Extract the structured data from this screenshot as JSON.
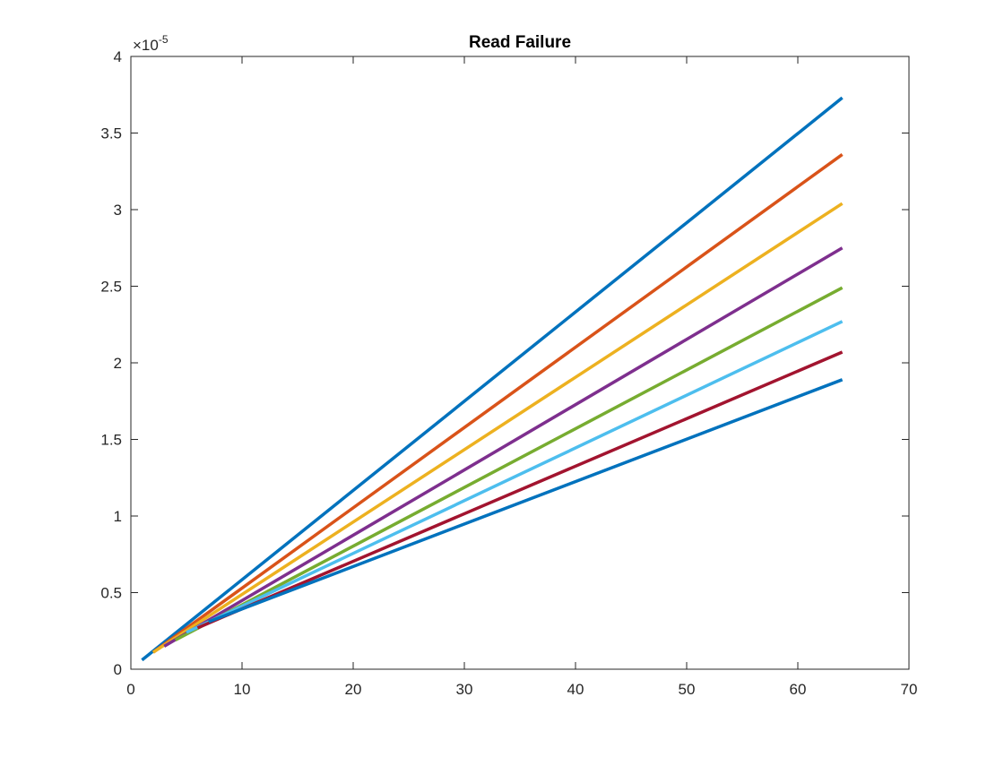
{
  "chart_data": {
    "type": "line",
    "title": "Read Failure",
    "xlabel": "",
    "ylabel": "",
    "xlim": [
      0,
      70
    ],
    "ylim": [
      0,
      4
    ],
    "x_ticks": [
      0,
      10,
      20,
      30,
      40,
      50,
      60,
      70
    ],
    "x_tick_labels": [
      "0",
      "10",
      "20",
      "30",
      "40",
      "50",
      "60",
      "70"
    ],
    "y_ticks": [
      0,
      0.5,
      1,
      1.5,
      2,
      2.5,
      3,
      3.5,
      4
    ],
    "y_tick_labels": [
      "0",
      "0.5",
      "1",
      "1.5",
      "2",
      "2.5",
      "3",
      "3.5",
      "4"
    ],
    "y_exponent": {
      "prefix": "×10",
      "power": "-5"
    },
    "grid": false,
    "legend": "none",
    "series": [
      {
        "color": "#0072BD",
        "x_start": 1,
        "y_start": 0.06,
        "x_end": 64,
        "y_end": 3.73
      },
      {
        "color": "#D95319",
        "x_start": 2,
        "y_start": 0.11,
        "x_end": 64,
        "y_end": 3.36
      },
      {
        "color": "#EDB120",
        "x_start": 2,
        "y_start": 0.11,
        "x_end": 64,
        "y_end": 3.04
      },
      {
        "color": "#7E2F8E",
        "x_start": 3,
        "y_start": 0.15,
        "x_end": 64,
        "y_end": 2.75
      },
      {
        "color": "#77AC30",
        "x_start": 4,
        "y_start": 0.19,
        "x_end": 64,
        "y_end": 2.49
      },
      {
        "color": "#4DBEEE",
        "x_start": 5,
        "y_start": 0.24,
        "x_end": 64,
        "y_end": 2.27
      },
      {
        "color": "#A2142F",
        "x_start": 6,
        "y_start": 0.27,
        "x_end": 64,
        "y_end": 2.07
      },
      {
        "color": "#0072BD",
        "x_start": 7,
        "y_start": 0.31,
        "x_end": 64,
        "y_end": 1.89
      }
    ]
  }
}
